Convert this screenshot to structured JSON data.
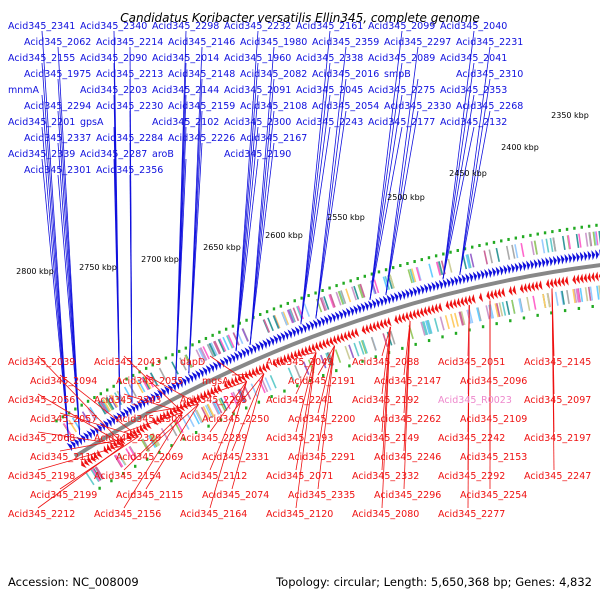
{
  "title": "Candidatus Koribacter versatilis Ellin345, complete genome",
  "accession": "Accession: NC_008009",
  "topology": "Topology: circular; Length: 5,650,368 bp; Genes: 4,832",
  "colors": {
    "forward": "#1010dd",
    "reverse": "#ee1111",
    "rna": "#ee88cc",
    "backbone": "#888888",
    "tick_dot": "#22aa22"
  },
  "kbp_labels": [
    "2350 kbp",
    "2400 kbp",
    "2450 kbp",
    "2500 kbp",
    "2550 kbp",
    "2600 kbp",
    "2650 kbp",
    "2700 kbp",
    "2750 kbp",
    "2800 kbp"
  ],
  "top_labels": [
    {
      "text": "Acid345_2341",
      "type": "forward"
    },
    {
      "text": "Acid345_2340",
      "type": "forward"
    },
    {
      "text": "Acid345_2298",
      "type": "forward"
    },
    {
      "text": "Acid345_2232",
      "type": "forward"
    },
    {
      "text": "Acid345_2161",
      "type": "forward"
    },
    {
      "text": "Acid345_2099",
      "type": "forward"
    },
    {
      "text": "Acid345_2040",
      "type": "forward"
    },
    {
      "text": "Acid345_2062",
      "type": "forward"
    },
    {
      "text": "Acid345_2214",
      "type": "forward"
    },
    {
      "text": "Acid345_2146",
      "type": "forward"
    },
    {
      "text": "Acid345_1980",
      "type": "forward"
    },
    {
      "text": "Acid345_2359",
      "type": "forward"
    },
    {
      "text": "Acid345_2297",
      "type": "forward"
    },
    {
      "text": "Acid345_2231",
      "type": "forward"
    },
    {
      "text": "Acid345_2155",
      "type": "forward"
    },
    {
      "text": "Acid345_2090",
      "type": "forward"
    },
    {
      "text": "Acid345_2014",
      "type": "forward"
    },
    {
      "text": "Acid345_1960",
      "type": "forward"
    },
    {
      "text": "Acid345_2338",
      "type": "forward"
    },
    {
      "text": "Acid345_2089",
      "type": "forward"
    },
    {
      "text": "Acid345_2041",
      "type": "forward"
    },
    {
      "text": "Acid345_1975",
      "type": "forward"
    },
    {
      "text": "Acid345_2213",
      "type": "forward"
    },
    {
      "text": "Acid345_2148",
      "type": "forward"
    },
    {
      "text": "Acid345_2082",
      "type": "forward"
    },
    {
      "text": "Acid345_2016",
      "type": "forward"
    },
    {
      "text": "smpB",
      "type": "forward"
    },
    {
      "text": "Acid345_2310",
      "type": "forward"
    },
    {
      "text": "mnmA",
      "type": "forward"
    },
    {
      "text": "Acid345_2203",
      "type": "forward"
    },
    {
      "text": "Acid345_2144",
      "type": "forward"
    },
    {
      "text": "Acid345_2091",
      "type": "forward"
    },
    {
      "text": "Acid345_2045",
      "type": "forward"
    },
    {
      "text": "Acid345_2275",
      "type": "forward"
    },
    {
      "text": "Acid345_2353",
      "type": "forward"
    },
    {
      "text": "Acid345_2294",
      "type": "forward"
    },
    {
      "text": "Acid345_2230",
      "type": "forward"
    },
    {
      "text": "Acid345_2159",
      "type": "forward"
    },
    {
      "text": "Acid345_2108",
      "type": "forward"
    },
    {
      "text": "Acid345_2054",
      "type": "forward"
    },
    {
      "text": "Acid345_2330",
      "type": "forward"
    },
    {
      "text": "Acid345_2268",
      "type": "forward"
    },
    {
      "text": "Acid345_2201",
      "type": "forward"
    },
    {
      "text": "gpsA",
      "type": "forward"
    },
    {
      "text": "Acid345_2102",
      "type": "forward"
    },
    {
      "text": "Acid345_2300",
      "type": "forward"
    },
    {
      "text": "Acid345_2243",
      "type": "forward"
    },
    {
      "text": "Acid345_2177",
      "type": "forward"
    },
    {
      "text": "Acid345_2132",
      "type": "forward"
    },
    {
      "text": "Acid345_2337",
      "type": "forward"
    },
    {
      "text": "Acid345_2284",
      "type": "forward"
    },
    {
      "text": "Acid345_2226",
      "type": "forward"
    },
    {
      "text": "Acid345_2167",
      "type": "forward"
    },
    {
      "text": "Acid345_2339",
      "type": "forward"
    },
    {
      "text": "Acid345_2287",
      "type": "forward"
    },
    {
      "text": "aroB",
      "type": "forward"
    },
    {
      "text": "Acid345_2190",
      "type": "forward"
    },
    {
      "text": "Acid345_2301",
      "type": "forward"
    },
    {
      "text": "Acid345_2356",
      "type": "forward"
    }
  ],
  "bottom_labels": [
    {
      "text": "Acid345_2039",
      "type": "reverse"
    },
    {
      "text": "Acid345_2043",
      "type": "reverse"
    },
    {
      "text": "dapD",
      "type": "reverse"
    },
    {
      "text": "Acid345_2049",
      "type": "reverse"
    },
    {
      "text": "Acid345_2088",
      "type": "reverse"
    },
    {
      "text": "Acid345_2051",
      "type": "reverse"
    },
    {
      "text": "Acid345_2145",
      "type": "reverse"
    },
    {
      "text": "Acid345_2094",
      "type": "reverse"
    },
    {
      "text": "Acid345_2055",
      "type": "reverse"
    },
    {
      "text": "mgsA",
      "type": "reverse"
    },
    {
      "text": "Acid345_2191",
      "type": "reverse"
    },
    {
      "text": "Acid345_2147",
      "type": "reverse"
    },
    {
      "text": "Acid345_2096",
      "type": "reverse"
    },
    {
      "text": "Acid345_2056",
      "type": "reverse"
    },
    {
      "text": "Acid345_2343",
      "type": "reverse"
    },
    {
      "text": "Acid345_2295",
      "type": "reverse"
    },
    {
      "text": "Acid345_2241",
      "type": "reverse"
    },
    {
      "text": "Acid345_2192",
      "type": "reverse"
    },
    {
      "text": "Acid345_R0023",
      "type": "rna"
    },
    {
      "text": "Acid345_2097",
      "type": "reverse"
    },
    {
      "text": "Acid345_2057",
      "type": "reverse"
    },
    {
      "text": "Acid345_2307",
      "type": "reverse"
    },
    {
      "text": "Acid345_2250",
      "type": "reverse"
    },
    {
      "text": "Acid345_2200",
      "type": "reverse"
    },
    {
      "text": "Acid345_2262",
      "type": "reverse"
    },
    {
      "text": "Acid345_2109",
      "type": "reverse"
    },
    {
      "text": "Acid345_2068",
      "type": "reverse"
    },
    {
      "text": "Acid345_2329",
      "type": "reverse"
    },
    {
      "text": "Acid345_2289",
      "type": "reverse"
    },
    {
      "text": "Acid345_2193",
      "type": "reverse"
    },
    {
      "text": "Acid345_2149",
      "type": "reverse"
    },
    {
      "text": "Acid345_2242",
      "type": "reverse"
    },
    {
      "text": "Acid345_2197",
      "type": "reverse"
    },
    {
      "text": "Acid345_2111",
      "type": "reverse"
    },
    {
      "text": "Acid345_2069",
      "type": "reverse"
    },
    {
      "text": "Acid345_2331",
      "type": "reverse"
    },
    {
      "text": "Acid345_2291",
      "type": "reverse"
    },
    {
      "text": "Acid345_2246",
      "type": "reverse"
    },
    {
      "text": "Acid345_2153",
      "type": "reverse"
    },
    {
      "text": "Acid345_2198",
      "type": "reverse"
    },
    {
      "text": "Acid345_2154",
      "type": "reverse"
    },
    {
      "text": "Acid345_2112",
      "type": "reverse"
    },
    {
      "text": "Acid345_2071",
      "type": "reverse"
    },
    {
      "text": "Acid345_2332",
      "type": "reverse"
    },
    {
      "text": "Acid345_2292",
      "type": "reverse"
    },
    {
      "text": "Acid345_2247",
      "type": "reverse"
    },
    {
      "text": "Acid345_2199",
      "type": "reverse"
    },
    {
      "text": "Acid345_2115",
      "type": "reverse"
    },
    {
      "text": "Acid345_2074",
      "type": "reverse"
    },
    {
      "text": "Acid345_2335",
      "type": "reverse"
    },
    {
      "text": "Acid345_2296",
      "type": "reverse"
    },
    {
      "text": "Acid345_2254",
      "type": "reverse"
    },
    {
      "text": "Acid345_2212",
      "type": "reverse"
    },
    {
      "text": "Acid345_2156",
      "type": "reverse"
    },
    {
      "text": "Acid345_2164",
      "type": "reverse"
    },
    {
      "text": "Acid345_2120",
      "type": "reverse"
    },
    {
      "text": "Acid345_2080",
      "type": "reverse"
    },
    {
      "text": "Acid345_2277",
      "type": "reverse"
    }
  ]
}
